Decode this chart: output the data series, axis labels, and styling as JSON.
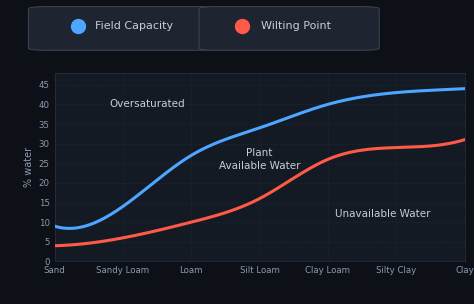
{
  "x_labels": [
    "Sand",
    "Sandy Loam",
    "Loam",
    "Silt Loam",
    "Clay Loam",
    "Silty Clay",
    "Clay"
  ],
  "field_capacity": [
    9,
    14,
    27,
    34,
    40,
    43,
    44
  ],
  "wilting_point": [
    4,
    6,
    10,
    16,
    26,
    29,
    31
  ],
  "bg_color": "#0d1117",
  "plot_bg_color": "#141a24",
  "grid_color": "#2a3040",
  "fc_color": "#4da6ff",
  "wp_color": "#ff5a47",
  "text_color": "#c8cdd8",
  "label_color": "#8a9ab0",
  "ylabel": "% water",
  "ylim": [
    0,
    48
  ],
  "yticks": [
    0,
    5,
    10,
    15,
    20,
    25,
    30,
    35,
    40,
    45
  ],
  "zone_oversaturated": "Oversaturated",
  "zone_available": "Plant\nAvailable Water",
  "zone_unavailable": "Unavailable Water",
  "legend_fc": "Field Capacity",
  "legend_wp": "Wilting Point",
  "legend_box_color": "#1e2530",
  "legend_box_edge": "#3a4050"
}
